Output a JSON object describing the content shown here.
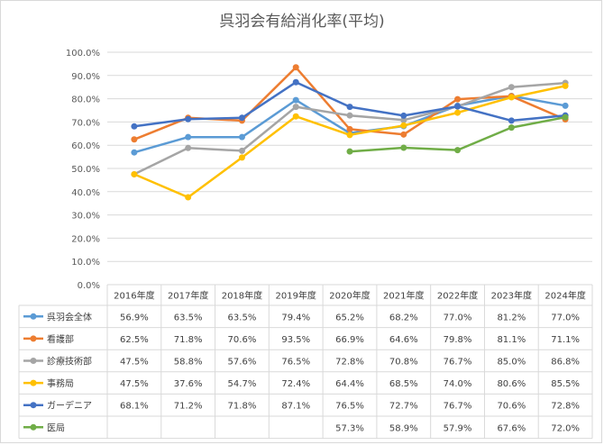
{
  "chart_data": {
    "type": "line",
    "title": "呉羽会有給消化率(平均)",
    "x": [
      "2016年度",
      "2017年度",
      "2018年度",
      "2019年度",
      "2020年度",
      "2021年度",
      "2022年度",
      "2023年度",
      "2024年度"
    ],
    "ylim": [
      0,
      100
    ],
    "yticks": [
      "0.0%",
      "10.0%",
      "20.0%",
      "30.0%",
      "40.0%",
      "50.0%",
      "60.0%",
      "70.0%",
      "80.0%",
      "90.0%",
      "100.0%"
    ],
    "grid": true,
    "legend": "data-table",
    "series": [
      {
        "name": "呉羽会全体",
        "color": "#5b9bd5",
        "values": [
          56.9,
          63.5,
          63.5,
          79.4,
          65.2,
          68.2,
          77.0,
          81.2,
          77.0
        ],
        "labels": [
          "56.9%",
          "63.5%",
          "63.5%",
          "79.4%",
          "65.2%",
          "68.2%",
          "77.0%",
          "81.2%",
          "77.0%"
        ]
      },
      {
        "name": "看護部",
        "color": "#ed7d31",
        "values": [
          62.5,
          71.8,
          70.6,
          93.5,
          66.9,
          64.6,
          79.8,
          81.1,
          71.1
        ],
        "labels": [
          "62.5%",
          "71.8%",
          "70.6%",
          "93.5%",
          "66.9%",
          "64.6%",
          "79.8%",
          "81.1%",
          "71.1%"
        ]
      },
      {
        "name": "診療技術部",
        "color": "#a5a5a5",
        "values": [
          47.5,
          58.8,
          57.6,
          76.5,
          72.8,
          70.8,
          76.7,
          85.0,
          86.8
        ],
        "labels": [
          "47.5%",
          "58.8%",
          "57.6%",
          "76.5%",
          "72.8%",
          "70.8%",
          "76.7%",
          "85.0%",
          "86.8%"
        ]
      },
      {
        "name": "事務局",
        "color": "#ffc000",
        "values": [
          47.5,
          37.6,
          54.7,
          72.4,
          64.4,
          68.5,
          74.0,
          80.6,
          85.5
        ],
        "labels": [
          "47.5%",
          "37.6%",
          "54.7%",
          "72.4%",
          "64.4%",
          "68.5%",
          "74.0%",
          "80.6%",
          "85.5%"
        ]
      },
      {
        "name": "ガーデニア",
        "color": "#4472c4",
        "values": [
          68.1,
          71.2,
          71.8,
          87.1,
          76.5,
          72.7,
          76.7,
          70.6,
          72.8
        ],
        "labels": [
          "68.1%",
          "71.2%",
          "71.8%",
          "87.1%",
          "76.5%",
          "72.7%",
          "76.7%",
          "70.6%",
          "72.8%"
        ]
      },
      {
        "name": "医局",
        "color": "#70ad47",
        "values": [
          null,
          null,
          null,
          null,
          57.3,
          58.9,
          57.9,
          67.6,
          72.0
        ],
        "labels": [
          "",
          "",
          "",
          "",
          "57.3%",
          "58.9%",
          "57.9%",
          "67.6%",
          "72.0%"
        ]
      }
    ]
  }
}
